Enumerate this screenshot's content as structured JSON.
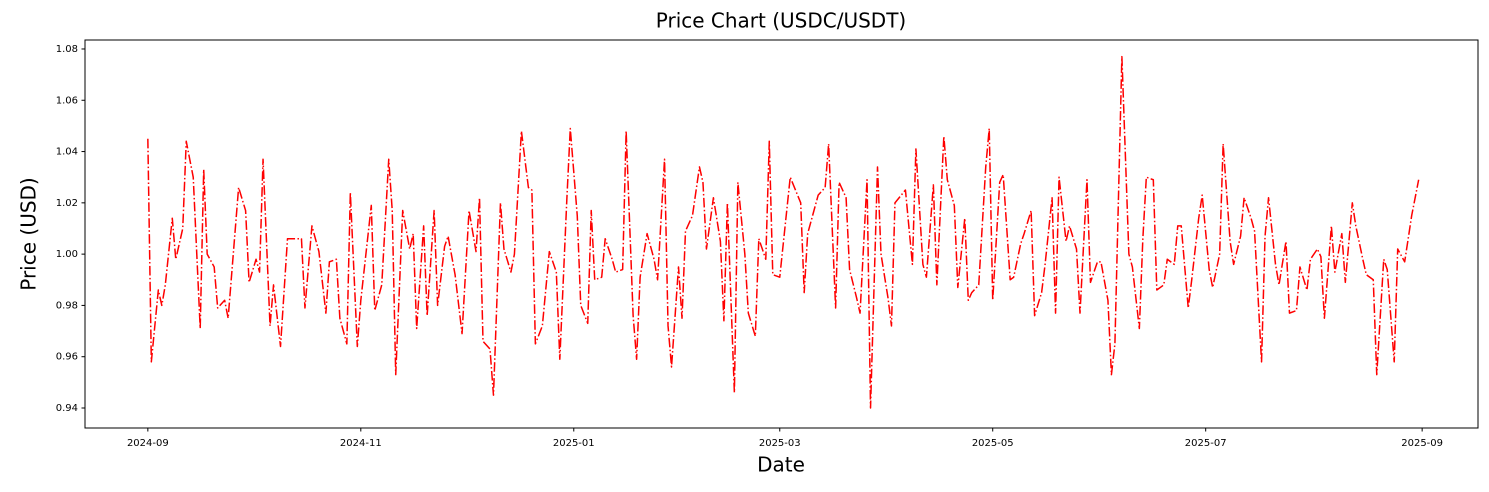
{
  "chart_data": {
    "type": "line",
    "title": "Price Chart (USDC/USDT)",
    "xlabel": "Date",
    "ylabel": "Price (USD)",
    "color": "#ff0000",
    "linestyle": "dashdot",
    "grid": false,
    "xlim": [
      "2024-08-14",
      "2025-09-17"
    ],
    "ylim": [
      0.9322,
      1.0835
    ],
    "xticks": [
      {
        "value": "2024-09-01",
        "label": "2024-09"
      },
      {
        "value": "2024-11-01",
        "label": "2024-11"
      },
      {
        "value": "2025-01-01",
        "label": "2025-01"
      },
      {
        "value": "2025-03-01",
        "label": "2025-03"
      },
      {
        "value": "2025-05-01",
        "label": "2025-05"
      },
      {
        "value": "2025-07-01",
        "label": "2025-07"
      },
      {
        "value": "2025-09-01",
        "label": "2025-09"
      }
    ],
    "yticks": [
      0.94,
      0.96,
      0.98,
      {
        "value": 1,
        "label": "1.00"
      },
      1.02,
      1.04,
      1.06,
      1.08
    ],
    "x": [
      "2024-09-01",
      "2024-09-02",
      "2024-09-04",
      "2024-09-05",
      "2024-09-06",
      "2024-09-08",
      "2024-09-09",
      "2024-09-11",
      "2024-09-12",
      "2024-09-14",
      "2024-09-16",
      "2024-09-17",
      "2024-09-18",
      "2024-09-20",
      "2024-09-21",
      "2024-09-23",
      "2024-09-24",
      "2024-09-27",
      "2024-09-29",
      "2024-09-30",
      "2024-10-02",
      "2024-10-03",
      "2024-10-04",
      "2024-10-06",
      "2024-10-07",
      "2024-10-09",
      "2024-10-11",
      "2024-10-15",
      "2024-10-16",
      "2024-10-18",
      "2024-10-20",
      "2024-10-22",
      "2024-10-23",
      "2024-10-25",
      "2024-10-26",
      "2024-10-28",
      "2024-10-29",
      "2024-10-31",
      "2024-11-01",
      "2024-11-04",
      "2024-11-05",
      "2024-11-07",
      "2024-11-09",
      "2024-11-10",
      "2024-11-11",
      "2024-11-13",
      "2024-11-15",
      "2024-11-16",
      "2024-11-17",
      "2024-11-19",
      "2024-11-20",
      "2024-11-22",
      "2024-11-23",
      "2024-11-25",
      "2024-11-26",
      "2024-11-28",
      "2024-11-30",
      "2024-12-02",
      "2024-12-04",
      "2024-12-05",
      "2024-12-06",
      "2024-12-08",
      "2024-12-09",
      "2024-12-11",
      "2024-12-12",
      "2024-12-14",
      "2024-12-15",
      "2024-12-17",
      "2024-12-19",
      "2024-12-20",
      "2024-12-21",
      "2024-12-23",
      "2024-12-25",
      "2024-12-27",
      "2024-12-28",
      "2024-12-30",
      "2024-12-31",
      "2025-01-02",
      "2025-01-03",
      "2025-01-05",
      "2025-01-06",
      "2025-01-07",
      "2025-01-09",
      "2025-01-10",
      "2025-01-12",
      "2025-01-13",
      "2025-01-15",
      "2025-01-16",
      "2025-01-18",
      "2025-01-19",
      "2025-01-20",
      "2025-01-22",
      "2025-01-24",
      "2025-01-25",
      "2025-01-27",
      "2025-01-28",
      "2025-01-29",
      "2025-01-31",
      "2025-02-01",
      "2025-02-02",
      "2025-02-04",
      "2025-02-06",
      "2025-02-07",
      "2025-02-08",
      "2025-02-10",
      "2025-02-12",
      "2025-02-13",
      "2025-02-14",
      "2025-02-16",
      "2025-02-17",
      "2025-02-19",
      "2025-02-20",
      "2025-02-22",
      "2025-02-23",
      "2025-02-25",
      "2025-02-26",
      "2025-02-27",
      "2025-03-01",
      "2025-03-04",
      "2025-03-07",
      "2025-03-08",
      "2025-03-09",
      "2025-03-12",
      "2025-03-14",
      "2025-03-15",
      "2025-03-17",
      "2025-03-18",
      "2025-03-20",
      "2025-03-21",
      "2025-03-23",
      "2025-03-24",
      "2025-03-26",
      "2025-03-27",
      "2025-03-29",
      "2025-03-30",
      "2025-04-01",
      "2025-04-02",
      "2025-04-03",
      "2025-04-06",
      "2025-04-08",
      "2025-04-09",
      "2025-04-11",
      "2025-04-12",
      "2025-04-14",
      "2025-04-15",
      "2025-04-17",
      "2025-04-18",
      "2025-04-20",
      "2025-04-21",
      "2025-04-23",
      "2025-04-24",
      "2025-04-25",
      "2025-04-27",
      "2025-04-29",
      "2025-04-30",
      "2025-05-01",
      "2025-05-03",
      "2025-05-04",
      "2025-05-06",
      "2025-05-07",
      "2025-05-09",
      "2025-05-10",
      "2025-05-12",
      "2025-05-13",
      "2025-05-15",
      "2025-05-16",
      "2025-05-18",
      "2025-05-19",
      "2025-05-20",
      "2025-05-22",
      "2025-05-23",
      "2025-05-25",
      "2025-05-26",
      "2025-05-28",
      "2025-05-29",
      "2025-05-31",
      "2025-06-01",
      "2025-06-03",
      "2025-06-04",
      "2025-06-05",
      "2025-06-07",
      "2025-06-09",
      "2025-06-10",
      "2025-06-12",
      "2025-06-13",
      "2025-06-14",
      "2025-06-16",
      "2025-06-17",
      "2025-06-19",
      "2025-06-20",
      "2025-06-22",
      "2025-06-23",
      "2025-06-24",
      "2025-06-26",
      "2025-06-27",
      "2025-06-29",
      "2025-06-30",
      "2025-07-02",
      "2025-07-03",
      "2025-07-05",
      "2025-07-06",
      "2025-07-08",
      "2025-07-09",
      "2025-07-11",
      "2025-07-12",
      "2025-07-14",
      "2025-07-15",
      "2025-07-17",
      "2025-07-18",
      "2025-07-19",
      "2025-07-21",
      "2025-07-22",
      "2025-07-24",
      "2025-07-25",
      "2025-07-27",
      "2025-07-28",
      "2025-07-30",
      "2025-07-31",
      "2025-08-02",
      "2025-08-03",
      "2025-08-04",
      "2025-08-06",
      "2025-08-07",
      "2025-08-09",
      "2025-08-10",
      "2025-08-12",
      "2025-08-13",
      "2025-08-15",
      "2025-08-16",
      "2025-08-18",
      "2025-08-19",
      "2025-08-21",
      "2025-08-22",
      "2025-08-24",
      "2025-08-25",
      "2025-08-27",
      "2025-08-29",
      "2025-08-31"
    ],
    "values": [
      1.045,
      0.958,
      0.986,
      0.98,
      0.988,
      1.014,
      0.998,
      1.01,
      1.044,
      1.03,
      0.971,
      1.033,
      1.0,
      0.995,
      0.979,
      0.982,
      0.975,
      1.026,
      1.017,
      0.989,
      0.998,
      0.993,
      1.037,
      0.972,
      0.988,
      0.964,
      1.006,
      1.006,
      0.979,
      1.011,
      1.001,
      0.977,
      0.997,
      0.998,
      0.975,
      0.965,
      1.024,
      0.964,
      0.982,
      1.019,
      0.978,
      0.988,
      1.037,
      1.017,
      0.953,
      1.017,
      1.002,
      1.008,
      0.971,
      1.011,
      0.976,
      1.017,
      0.98,
      1.003,
      1.007,
      0.992,
      0.969,
      1.017,
      1.001,
      1.022,
      0.966,
      0.963,
      0.945,
      1.02,
      1.002,
      0.993,
      1.0,
      1.048,
      1.026,
      1.025,
      0.965,
      0.972,
      1.001,
      0.993,
      0.959,
      1.021,
      1.049,
      1.015,
      0.98,
      0.973,
      1.017,
      0.99,
      0.991,
      1.006,
      0.998,
      0.993,
      0.994,
      1.048,
      0.976,
      0.959,
      0.991,
      1.008,
      0.998,
      0.99,
      1.037,
      0.972,
      0.956,
      0.995,
      0.975,
      1.009,
      1.015,
      1.034,
      1.028,
      1.002,
      1.022,
      1.005,
      0.974,
      1.02,
      0.946,
      1.028,
      1.0,
      0.977,
      0.968,
      1.006,
      0.998,
      1.044,
      0.992,
      0.991,
      1.03,
      1.02,
      0.985,
      1.008,
      1.023,
      1.026,
      1.043,
      0.979,
      1.028,
      1.022,
      0.994,
      0.983,
      0.977,
      1.029,
      0.94,
      1.034,
      1.0,
      0.983,
      0.972,
      1.02,
      1.025,
      0.996,
      1.041,
      0.996,
      0.991,
      1.027,
      0.988,
      1.046,
      1.029,
      1.019,
      0.987,
      1.014,
      0.982,
      0.985,
      0.988,
      1.034,
      1.049,
      0.982,
      1.028,
      1.031,
      0.99,
      0.991,
      1.004,
      1.008,
      1.017,
      0.976,
      0.985,
      0.996,
      1.022,
      0.977,
      1.03,
      1.005,
      1.011,
      1.002,
      0.977,
      1.029,
      0.989,
      0.997,
      0.997,
      0.982,
      0.953,
      0.965,
      1.077,
      1.0,
      0.995,
      0.971,
      1.006,
      1.03,
      1.029,
      0.986,
      0.988,
      0.998,
      0.996,
      1.011,
      1.011,
      0.979,
      0.99,
      1.014,
      1.023,
      0.994,
      0.987,
      1.0,
      1.043,
      1.005,
      0.996,
      1.007,
      1.022,
      1.014,
      1.009,
      0.958,
      1.007,
      1.022,
      0.996,
      0.988,
      1.005,
      0.977,
      0.978,
      0.995,
      0.986,
      0.998,
      1.002,
      0.999,
      0.975,
      1.011,
      0.993,
      1.008,
      0.989,
      1.02,
      1.011,
      0.998,
      0.992,
      0.99,
      0.953,
      0.998,
      0.994,
      0.958,
      1.002,
      0.997,
      1.015,
      1.029
    ]
  }
}
